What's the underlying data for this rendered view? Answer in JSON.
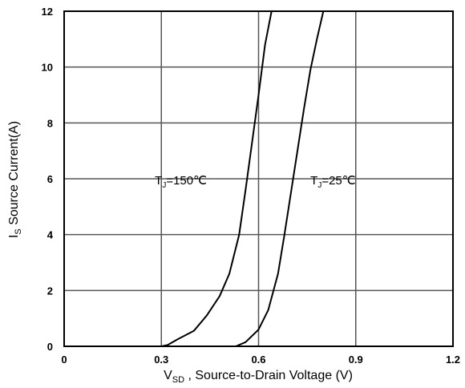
{
  "chart_data": {
    "type": "line",
    "xlabel": {
      "main": "V",
      "sub": "SD",
      "rest": " , Source-to-Drain Voltage (V)"
    },
    "ylabel": {
      "main": "I",
      "sub": "S",
      "rest": " Source Current(A)"
    },
    "xlim": [
      0,
      1.2
    ],
    "ylim": [
      0,
      12
    ],
    "x_ticks": [
      0,
      0.3,
      0.6,
      0.9,
      1.2
    ],
    "x_tick_labels": [
      "0",
      "0.3",
      "0.6",
      "0.9",
      "1.2"
    ],
    "y_ticks": [
      0,
      2,
      4,
      6,
      8,
      10,
      12
    ],
    "y_tick_labels": [
      "0",
      "2",
      "4",
      "6",
      "8",
      "10",
      "12"
    ],
    "grid": true,
    "series": [
      {
        "x": [
          0,
          0.3,
          0.32,
          0.35,
          0.4,
          0.44,
          0.48,
          0.51,
          0.54,
          0.56,
          0.58,
          0.6,
          0.62,
          0.64
        ],
        "y": [
          0,
          0,
          0.05,
          0.25,
          0.55,
          1.1,
          1.8,
          2.6,
          4.0,
          5.6,
          7.3,
          9.0,
          10.8,
          12
        ]
      },
      {
        "x": [
          0.53,
          0.56,
          0.6,
          0.63,
          0.66,
          0.68,
          0.7,
          0.72,
          0.74,
          0.76,
          0.78,
          0.8
        ],
        "y": [
          0,
          0.15,
          0.6,
          1.3,
          2.6,
          4.0,
          5.5,
          7.0,
          8.5,
          9.9,
          11.0,
          12
        ]
      }
    ],
    "annotations": [
      {
        "base": "T",
        "sub": "J",
        "rest": "=150℃",
        "x": 0.28,
        "y": 5.0
      },
      {
        "base": "T",
        "sub": "J",
        "rest": "=25℃",
        "x": 0.76,
        "y": 5.0
      }
    ]
  }
}
